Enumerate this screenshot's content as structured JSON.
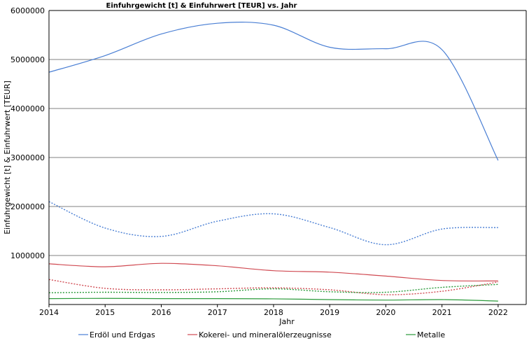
{
  "chart_data": {
    "type": "line",
    "title": "Einfuhrgewicht [t] & Einfuhrwert [TEUR] vs. Jahr",
    "xlabel": "Jahr",
    "ylabel": "Einfuhrgewicht [t] & Einfuhrwert [TEUR]",
    "x": [
      2014,
      2015,
      2016,
      2017,
      2018,
      2019,
      2020,
      2021,
      2022
    ],
    "xlim": [
      2014,
      2022.5
    ],
    "ylim": [
      0,
      6000000
    ],
    "y_ticks": [
      1000000,
      2000000,
      3000000,
      4000000,
      5000000,
      6000000
    ],
    "y_tick_labels": [
      "1000000",
      "2000000",
      "3000000",
      "4000000",
      "5000000",
      "6000000"
    ],
    "x_tick_labels": [
      "2014",
      "2015",
      "2016",
      "2017",
      "2018",
      "2019",
      "2020",
      "2021",
      "2022"
    ],
    "grid": "horizontal",
    "legend_position": "bottom",
    "series": [
      {
        "name": "Erdöl und Erdgas",
        "color": "#4a7fd4",
        "solid_values": [
          4740000,
          5080000,
          5520000,
          5740000,
          5700000,
          5250000,
          5220000,
          5200000,
          2940000
        ],
        "dotted_values": [
          2100000,
          1560000,
          1390000,
          1700000,
          1850000,
          1570000,
          1220000,
          1540000,
          1570000
        ]
      },
      {
        "name": "Kokerei- und mineralölerzeugnisse",
        "color": "#d04a52",
        "solid_values": [
          830000,
          770000,
          840000,
          790000,
          690000,
          660000,
          580000,
          490000,
          480000
        ],
        "dotted_values": [
          510000,
          330000,
          300000,
          320000,
          340000,
          300000,
          200000,
          270000,
          460000
        ]
      },
      {
        "name": "Metalle",
        "color": "#2a9a3a",
        "solid_values": [
          120000,
          125000,
          120000,
          120000,
          115000,
          100000,
          90000,
          100000,
          70000
        ],
        "dotted_values": [
          240000,
          250000,
          245000,
          260000,
          320000,
          260000,
          250000,
          350000,
          410000
        ]
      }
    ]
  }
}
